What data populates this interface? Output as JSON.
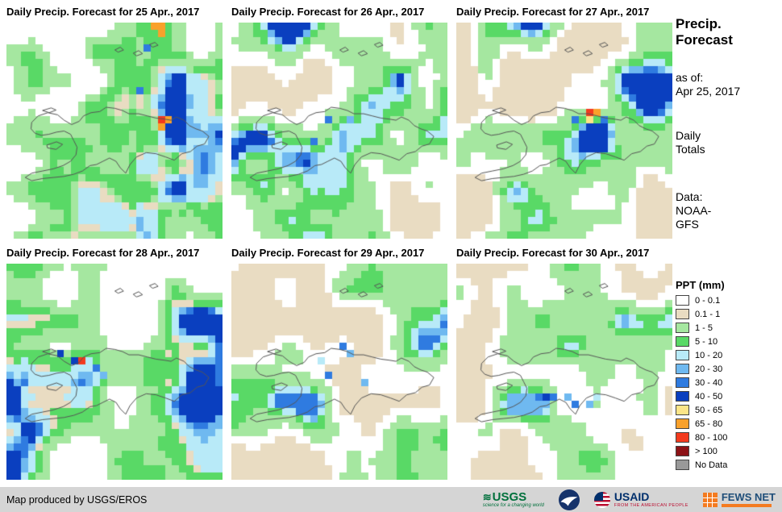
{
  "panels": [
    {
      "title": "Daily Precip. Forecast for 25 Apr., 2017",
      "grid": {
        "seed": 3,
        "ramp": [
          [
            0,
            10
          ],
          [
            2,
            26
          ],
          [
            3,
            22
          ],
          [
            2,
            8
          ],
          [
            1,
            6
          ],
          [
            4,
            16
          ],
          [
            5,
            7
          ],
          [
            6,
            4
          ],
          [
            7,
            1
          ]
        ],
        "bias": [
          [
            0.6,
            0.84,
            0.0,
            1.0,
            0.22
          ]
        ],
        "spots": [
          [
            0.69,
            0.02,
            9
          ],
          [
            0.73,
            0.02,
            9
          ],
          [
            0.71,
            0.06,
            9
          ],
          [
            0.66,
            0.1,
            6
          ],
          [
            0.7,
            0.44,
            10
          ],
          [
            0.735,
            0.44,
            9
          ],
          [
            0.7,
            0.48,
            9
          ],
          [
            0.6,
            0.3,
            6
          ]
        ]
      }
    },
    {
      "title": "Daily Precip. Forecast for 26 Apr., 2017",
      "grid": {
        "seed": 11,
        "ramp": [
          [
            1,
            14
          ],
          [
            0,
            30
          ],
          [
            2,
            26
          ],
          [
            3,
            14
          ],
          [
            4,
            9
          ],
          [
            5,
            4
          ],
          [
            6,
            2
          ],
          [
            7,
            1
          ]
        ],
        "bias": [],
        "spots": [
          [
            0.44,
            0.46,
            6
          ],
          [
            0.5,
            0.5,
            5
          ],
          [
            0.38,
            0.54,
            6
          ],
          [
            0.56,
            0.44,
            5
          ]
        ]
      }
    },
    {
      "title": "Daily Precip. Forecast for 27 Apr., 2017",
      "grid": {
        "seed": 23,
        "ramp": [
          [
            1,
            24
          ],
          [
            0,
            18
          ],
          [
            2,
            28
          ],
          [
            3,
            14
          ],
          [
            4,
            9
          ],
          [
            5,
            4
          ],
          [
            6,
            2
          ],
          [
            7,
            1
          ]
        ],
        "bias": [],
        "spots": [
          [
            0.6,
            0.42,
            10
          ],
          [
            0.64,
            0.42,
            9
          ],
          [
            0.62,
            0.46,
            8
          ],
          [
            0.55,
            0.44,
            6
          ],
          [
            0.68,
            0.46,
            6
          ]
        ]
      }
    },
    {
      "title": "Daily Precip. Forecast for 28 Apr., 2017",
      "grid": {
        "seed": 37,
        "ramp": [
          [
            0,
            16
          ],
          [
            2,
            32
          ],
          [
            3,
            20
          ],
          [
            1,
            5
          ],
          [
            4,
            15
          ],
          [
            5,
            7
          ],
          [
            6,
            4
          ],
          [
            7,
            1
          ]
        ],
        "bias": [
          [
            0.08,
            0.78,
            0.4,
            0.58,
            0.2
          ]
        ],
        "spots": [
          [
            0.33,
            0.46,
            9
          ],
          [
            0.36,
            0.46,
            10
          ],
          [
            0.3,
            0.46,
            7
          ],
          [
            0.4,
            0.49,
            6
          ],
          [
            0.25,
            0.43,
            7
          ],
          [
            0.45,
            0.5,
            5
          ]
        ]
      }
    },
    {
      "title": "Daily Precip. Forecast for 29 Apr., 2017",
      "grid": {
        "seed": 51,
        "ramp": [
          [
            1,
            20
          ],
          [
            0,
            26
          ],
          [
            2,
            28
          ],
          [
            3,
            14
          ],
          [
            4,
            8
          ],
          [
            5,
            3
          ],
          [
            6,
            1
          ]
        ],
        "bias": [],
        "spots": [
          [
            0.5,
            0.38,
            6
          ],
          [
            0.55,
            0.42,
            5
          ],
          [
            0.46,
            0.52,
            6
          ],
          [
            0.6,
            0.54,
            5
          ],
          [
            0.42,
            0.44,
            4
          ]
        ]
      }
    },
    {
      "title": "Daily Precip. Forecast for 30 Apr., 2017",
      "grid": {
        "seed": 67,
        "ramp": [
          [
            1,
            20
          ],
          [
            0,
            28
          ],
          [
            2,
            30
          ],
          [
            3,
            14
          ],
          [
            4,
            6
          ],
          [
            5,
            2
          ]
        ],
        "bias": [],
        "spots": [
          [
            0.38,
            0.63,
            6
          ],
          [
            0.42,
            0.63,
            7
          ],
          [
            0.46,
            0.63,
            6
          ],
          [
            0.5,
            0.63,
            5
          ],
          [
            0.55,
            0.64,
            6
          ],
          [
            0.6,
            0.64,
            5
          ],
          [
            0.65,
            0.6,
            4
          ]
        ]
      }
    }
  ],
  "sidebar": {
    "title1": "Precip.",
    "title2": "Forecast",
    "asof1": "as of:",
    "asof2": "Apr 25, 2017",
    "tot1": "Daily",
    "tot2": "Totals",
    "data1": "Data:",
    "data2": "NOAA-",
    "data3": "GFS"
  },
  "legend": {
    "title": "PPT (mm)",
    "entries": [
      {
        "label": "0 - 0.1",
        "color": "#FFFFFF"
      },
      {
        "label": "0.1 - 1",
        "color": "#E9DCC2"
      },
      {
        "label": "1 - 5",
        "color": "#A5E7A0"
      },
      {
        "label": "5 - 10",
        "color": "#59D966"
      },
      {
        "label": "10 - 20",
        "color": "#B8EAF8"
      },
      {
        "label": "20 - 30",
        "color": "#6FB9F0"
      },
      {
        "label": "30 - 40",
        "color": "#2F7BE0"
      },
      {
        "label": "40 - 50",
        "color": "#0A3FBF"
      },
      {
        "label": "50 - 65",
        "color": "#FCE588"
      },
      {
        "label": "65 - 80",
        "color": "#F9A12B"
      },
      {
        "label": "80 - 100",
        "color": "#F33A1E"
      },
      {
        "label": "> 100",
        "color": "#8C1216"
      },
      {
        "label": "No Data",
        "color": "#999999"
      }
    ]
  },
  "footer": {
    "credit": "Map produced by USGS/EROS",
    "logos": {
      "usgs": {
        "text": "USGS",
        "tagline": "science for a changing world"
      },
      "noaa": {
        "name": "NOAA"
      },
      "usaid": {
        "text": "USAID",
        "tagline": "FROM THE AMERICAN PEOPLE"
      },
      "fewsnet": {
        "text": "FEWS NET"
      }
    }
  },
  "colors": {
    "usgs_green": "#00703C",
    "noaa_blue": "#16336B",
    "usaid_blue": "#002F6C",
    "usaid_red": "#BA0C2F",
    "fews_orange": "#F47B20",
    "fews_blue": "#1F4E79",
    "footer_bg": "#D5D5D5",
    "coastline": "#555555"
  }
}
